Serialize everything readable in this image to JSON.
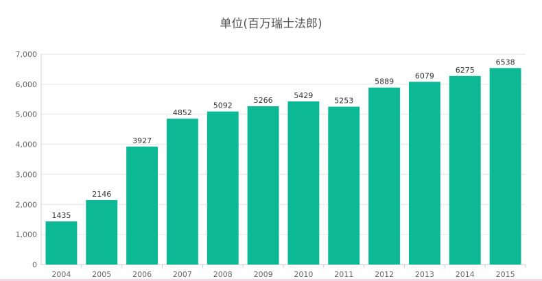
{
  "chart_data": {
    "type": "bar",
    "title": "单位(百万瑞士法郎)",
    "xlabel": "",
    "ylabel": "",
    "categories": [
      "2004",
      "2005",
      "2006",
      "2007",
      "2008",
      "2009",
      "2010",
      "2011",
      "2012",
      "2013",
      "2014",
      "2015"
    ],
    "values": [
      1435,
      2146,
      3927,
      4852,
      5092,
      5266,
      5429,
      5253,
      5889,
      6079,
      6275,
      6538
    ],
    "ylim": [
      0,
      7000
    ],
    "yticks": [
      "0",
      "1,000",
      "2,000",
      "3,000",
      "4,000",
      "5,000",
      "6,000",
      "7,000"
    ],
    "grid": true,
    "legend": "none",
    "colors": {
      "bar": "#0db994",
      "grid": "#e6e6e6",
      "axis": "#cccccc",
      "tick_text": "#666666",
      "label_text": "#333333"
    }
  }
}
